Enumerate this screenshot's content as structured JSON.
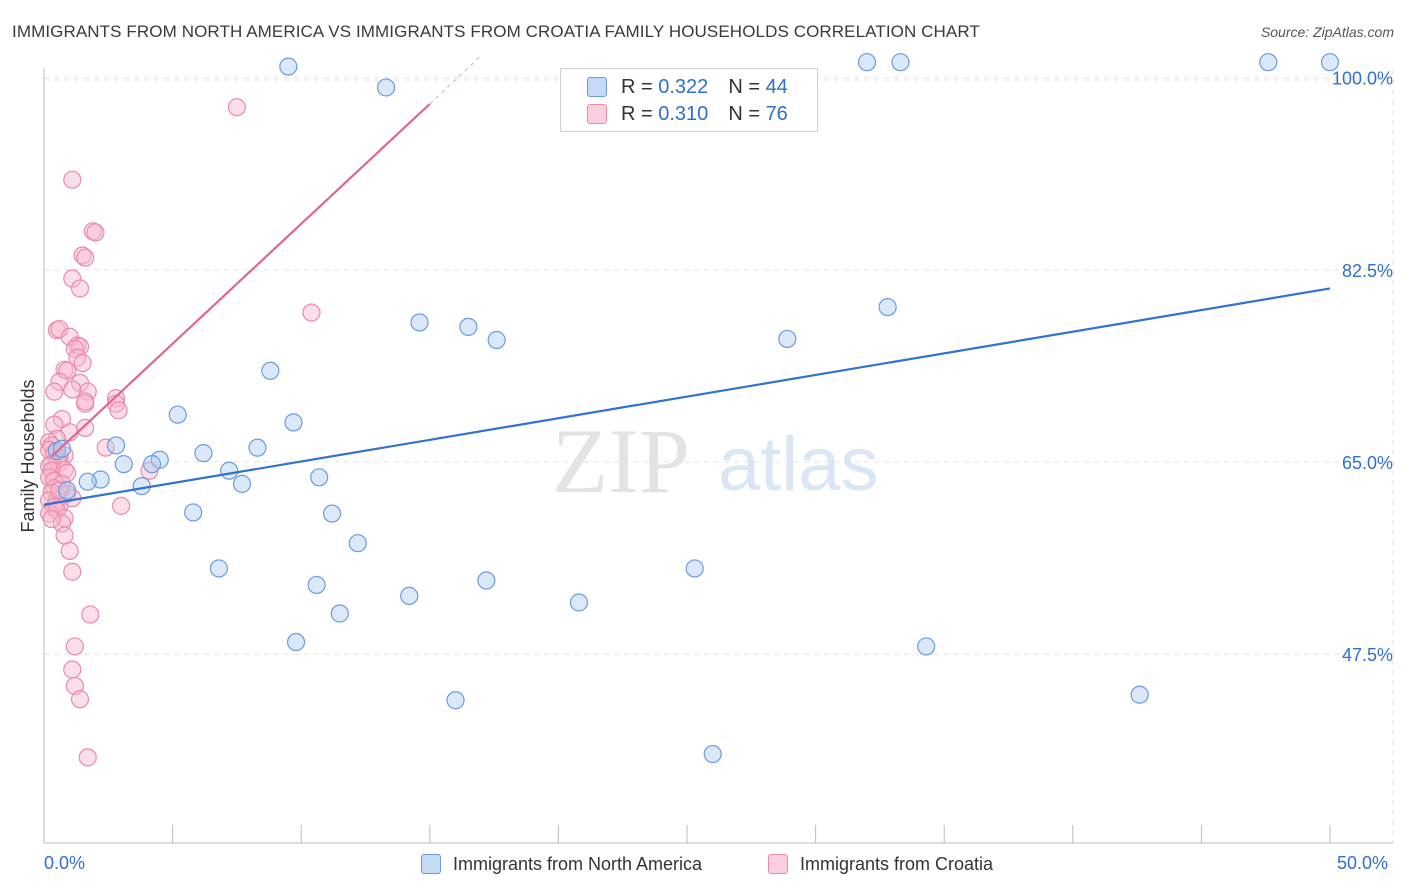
{
  "title": "IMMIGRANTS FROM NORTH AMERICA VS IMMIGRANTS FROM CROATIA FAMILY HOUSEHOLDS CORRELATION CHART",
  "source": "Source: ZipAtlas.com",
  "watermark": {
    "zip": "ZIP",
    "atlas": "atlas"
  },
  "legend": {
    "r_label": "R =",
    "n_label": "N =",
    "series1": {
      "r": "0.322",
      "n": "44"
    },
    "series2": {
      "r": "0.310",
      "n": "76"
    }
  },
  "bottom_legend": {
    "series1": "Immigrants from North America",
    "series2": "Immigrants from Croatia"
  },
  "x_axis": {
    "min_label": "0.0%",
    "max_label": "50.0%"
  },
  "colors": {
    "blue_fill": "#aecbf0",
    "blue_stroke": "#6b9be0",
    "blue_line": "#2f72d0",
    "pink_fill": "#f6b8cc",
    "pink_stroke": "#ec8aab",
    "pink_line": "#e0668f",
    "tick_text": "#2f6fd0",
    "grid": "#e2e2e2"
  },
  "chart_data": {
    "type": "scatter",
    "title": "IMMIGRANTS FROM NORTH AMERICA VS IMMIGRANTS FROM CROATIA FAMILY HOUSEHOLDS CORRELATION CHART",
    "xlabel": "",
    "ylabel": "Family Households",
    "xlim": [
      0,
      50
    ],
    "ylim": [
      30.3,
      101.6
    ],
    "y_ticks": [
      47.5,
      65.0,
      82.5,
      100.0
    ],
    "y_tick_labels": [
      "47.5%",
      "65.0%",
      "82.5%",
      "100.0%"
    ],
    "x_tick_labels": [
      "0.0%",
      "50.0%"
    ],
    "series": [
      {
        "name": "Immigrants from North America",
        "R": 0.322,
        "N": 44,
        "trend": {
          "x": [
            0,
            50
          ],
          "y": [
            61.1,
            80.8
          ]
        },
        "points": [
          [
            9.5,
            101.0
          ],
          [
            13.3,
            99.1
          ],
          [
            32.0,
            101.4
          ],
          [
            33.3,
            101.4
          ],
          [
            47.6,
            101.4
          ],
          [
            50.0,
            101.4
          ],
          [
            14.6,
            77.7
          ],
          [
            16.5,
            77.3
          ],
          [
            17.6,
            76.1
          ],
          [
            28.9,
            76.2
          ],
          [
            32.8,
            79.1
          ],
          [
            8.8,
            73.3
          ],
          [
            5.2,
            69.3
          ],
          [
            9.7,
            68.6
          ],
          [
            8.3,
            66.3
          ],
          [
            2.8,
            66.5
          ],
          [
            6.2,
            65.8
          ],
          [
            4.5,
            65.2
          ],
          [
            3.1,
            64.8
          ],
          [
            4.2,
            64.8
          ],
          [
            7.2,
            64.2
          ],
          [
            10.7,
            63.6
          ],
          [
            2.2,
            63.4
          ],
          [
            1.7,
            63.2
          ],
          [
            7.7,
            63.0
          ],
          [
            3.8,
            62.8
          ],
          [
            0.9,
            62.4
          ],
          [
            5.8,
            60.4
          ],
          [
            11.2,
            60.3
          ],
          [
            6.8,
            55.3
          ],
          [
            12.2,
            57.6
          ],
          [
            10.6,
            53.8
          ],
          [
            17.2,
            54.2
          ],
          [
            25.3,
            55.3
          ],
          [
            14.2,
            52.8
          ],
          [
            11.5,
            51.2
          ],
          [
            20.8,
            52.2
          ],
          [
            9.8,
            48.6
          ],
          [
            34.3,
            48.2
          ],
          [
            16.0,
            43.3
          ],
          [
            42.6,
            43.8
          ],
          [
            26.0,
            38.4
          ],
          [
            0.5,
            66.0
          ],
          [
            0.7,
            66.2
          ]
        ]
      },
      {
        "name": "Immigrants from Croatia",
        "R": 0.31,
        "N": 76,
        "trend": {
          "x": [
            0.3,
            15.0
          ],
          "y": [
            65.5,
            97.6
          ]
        },
        "trend_dashed_ext": {
          "x": [
            15.0,
            17.0
          ],
          "y": [
            97.6,
            102.0
          ]
        },
        "points": [
          [
            7.5,
            97.3
          ],
          [
            1.1,
            90.7
          ],
          [
            1.9,
            86.0
          ],
          [
            2.0,
            85.9
          ],
          [
            1.5,
            83.8
          ],
          [
            1.6,
            83.6
          ],
          [
            1.1,
            81.7
          ],
          [
            1.4,
            80.8
          ],
          [
            10.4,
            78.6
          ],
          [
            0.5,
            77.0
          ],
          [
            0.6,
            77.1
          ],
          [
            1.0,
            76.4
          ],
          [
            1.3,
            75.6
          ],
          [
            1.4,
            75.5
          ],
          [
            1.2,
            75.3
          ],
          [
            1.3,
            74.5
          ],
          [
            1.5,
            74.0
          ],
          [
            0.8,
            73.4
          ],
          [
            0.9,
            73.3
          ],
          [
            0.6,
            72.3
          ],
          [
            1.4,
            72.2
          ],
          [
            0.4,
            71.4
          ],
          [
            1.7,
            71.4
          ],
          [
            1.1,
            71.6
          ],
          [
            1.6,
            70.3
          ],
          [
            1.6,
            70.5
          ],
          [
            2.8,
            70.8
          ],
          [
            2.8,
            70.3
          ],
          [
            2.9,
            69.7
          ],
          [
            0.7,
            68.9
          ],
          [
            0.4,
            68.4
          ],
          [
            1.6,
            68.1
          ],
          [
            1.0,
            67.7
          ],
          [
            0.5,
            67.1
          ],
          [
            0.2,
            66.8
          ],
          [
            0.3,
            66.5
          ],
          [
            0.2,
            66.1
          ],
          [
            0.8,
            65.6
          ],
          [
            0.4,
            65.8
          ],
          [
            0.6,
            65.4
          ],
          [
            2.4,
            66.3
          ],
          [
            0.5,
            65.2
          ],
          [
            0.6,
            64.9
          ],
          [
            0.3,
            64.8
          ],
          [
            0.2,
            64.6
          ],
          [
            0.3,
            64.2
          ],
          [
            0.8,
            64.3
          ],
          [
            0.9,
            64.0
          ],
          [
            0.2,
            63.6
          ],
          [
            0.4,
            63.3
          ],
          [
            0.7,
            63.0
          ],
          [
            0.4,
            62.6
          ],
          [
            0.3,
            62.2
          ],
          [
            0.9,
            62.1
          ],
          [
            0.5,
            61.5
          ],
          [
            0.6,
            61.0
          ],
          [
            0.2,
            61.5
          ],
          [
            0.4,
            60.9
          ],
          [
            0.2,
            60.3
          ],
          [
            0.5,
            60.6
          ],
          [
            3.0,
            61.0
          ],
          [
            0.8,
            59.9
          ],
          [
            0.7,
            59.4
          ],
          [
            0.8,
            58.3
          ],
          [
            1.0,
            56.9
          ],
          [
            1.1,
            55.0
          ],
          [
            1.8,
            51.1
          ],
          [
            1.2,
            48.2
          ],
          [
            1.1,
            46.1
          ],
          [
            1.2,
            44.6
          ],
          [
            1.4,
            43.4
          ],
          [
            1.7,
            38.1
          ],
          [
            4.1,
            64.2
          ],
          [
            1.1,
            61.7
          ],
          [
            0.6,
            62.4
          ],
          [
            0.3,
            59.8
          ]
        ]
      }
    ]
  }
}
